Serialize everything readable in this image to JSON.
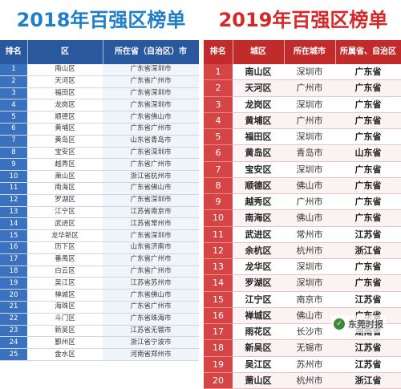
{
  "title_2018": "2018年百强区榜单",
  "title_2019": "2019年百强区榜单",
  "table_2018": {
    "headers": [
      "排名",
      "区",
      "所在省（自治区）市"
    ],
    "rows": [
      [
        "1",
        "南山区",
        "广东省深圳市"
      ],
      [
        "2",
        "天河区",
        "广东省广州市"
      ],
      [
        "3",
        "福田区",
        "广东省深圳市"
      ],
      [
        "4",
        "龙岗区",
        "广东省深圳市"
      ],
      [
        "5",
        "顺德区",
        "广东省佛山市"
      ],
      [
        "6",
        "黄埔区",
        "广东省广州市"
      ],
      [
        "7",
        "黄岛区",
        "山东省青岛市"
      ],
      [
        "8",
        "宝安区",
        "广东省深圳市"
      ],
      [
        "9",
        "越秀区",
        "广东省广州市"
      ],
      [
        "10",
        "萧山区",
        "浙江省杭州市"
      ],
      [
        "11",
        "南海区",
        "广东省佛山市"
      ],
      [
        "12",
        "罗湖区",
        "广东省深圳市"
      ],
      [
        "13",
        "江宁区",
        "江苏省南京市"
      ],
      [
        "14",
        "武进区",
        "江苏省常州市"
      ],
      [
        "15",
        "龙华新区",
        "广东省深圳市"
      ],
      [
        "16",
        "历下区",
        "山东省济南市"
      ],
      [
        "17",
        "番禺区",
        "广东省广州市"
      ],
      [
        "18",
        "白云区",
        "广东省广州市"
      ],
      [
        "19",
        "吴江区",
        "江苏省苏州市"
      ],
      [
        "20",
        "禅城区",
        "广东省佛山市"
      ],
      [
        "21",
        "海珠区",
        "广东省广州市"
      ],
      [
        "22",
        "斗门区",
        "广东省珠海市"
      ],
      [
        "23",
        "新吴区",
        "江苏省无锡市"
      ],
      [
        "24",
        "鄞州区",
        "浙江省宁波市"
      ],
      [
        "25",
        "金水区",
        "河南省郑州市"
      ]
    ]
  },
  "table_2019": {
    "headers": [
      "排名",
      "城区",
      "所在城市",
      "所属省、自治区"
    ],
    "rows": [
      [
        "1",
        "南山区",
        "深圳市",
        "广东省"
      ],
      [
        "2",
        "天河区",
        "广州市",
        "广东省"
      ],
      [
        "3",
        "龙岗区",
        "深圳市",
        "广东省"
      ],
      [
        "4",
        "黄埔区",
        "广州市",
        "广东省"
      ],
      [
        "5",
        "福田区",
        "深圳市",
        "广东省"
      ],
      [
        "6",
        "黄岛区",
        "青岛市",
        "山东省"
      ],
      [
        "7",
        "宝安区",
        "深圳市",
        "广东省"
      ],
      [
        "8",
        "顺德区",
        "佛山市",
        "广东省"
      ],
      [
        "9",
        "越秀区",
        "广州市",
        "广东省"
      ],
      [
        "10",
        "南海区",
        "佛山市",
        "广东省"
      ],
      [
        "11",
        "武进区",
        "常州市",
        "江苏省"
      ],
      [
        "12",
        "余杭区",
        "杭州市",
        "浙江省"
      ],
      [
        "13",
        "龙华区",
        "深圳市",
        "广东省"
      ],
      [
        "14",
        "罗湖区",
        "深圳市",
        "广东省"
      ],
      [
        "15",
        "江宁区",
        "南京市",
        "江苏省"
      ],
      [
        "16",
        "禅城区",
        "佛山市",
        "广东省"
      ],
      [
        "17",
        "雨花区",
        "长沙市",
        "湖南省"
      ],
      [
        "18",
        "新吴区",
        "无锡市",
        "江苏省"
      ],
      [
        "19",
        "吴江区",
        "苏州市",
        "江苏省"
      ],
      [
        "20",
        "萧山区",
        "杭州市",
        "浙江省"
      ]
    ]
  },
  "watermark": {
    "text": "东莞时报",
    "icon": "wechat-logo-icon"
  }
}
